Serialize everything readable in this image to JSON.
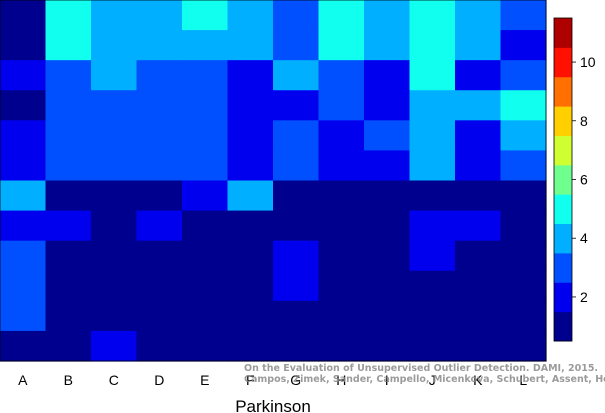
{
  "chart_data": {
    "type": "heatmap",
    "xlabel": "Parkinson",
    "x_categories": [
      "A",
      "B",
      "C",
      "D",
      "E",
      "F",
      "G",
      "H",
      "I",
      "J",
      "K",
      "L"
    ],
    "row_count": 12,
    "values": [
      [
        1,
        5,
        4,
        4,
        5,
        4,
        3,
        5,
        4,
        5,
        4,
        3
      ],
      [
        1,
        5,
        4,
        4,
        4,
        4,
        3,
        5,
        4,
        5,
        4,
        2
      ],
      [
        2,
        3,
        4,
        3,
        3,
        2,
        4,
        3,
        2,
        5,
        2,
        3
      ],
      [
        1,
        3,
        3,
        3,
        3,
        2,
        2,
        3,
        2,
        4,
        4,
        5
      ],
      [
        2,
        3,
        3,
        3,
        3,
        2,
        3,
        2,
        3,
        4,
        2,
        4
      ],
      [
        2,
        3,
        3,
        3,
        3,
        2,
        3,
        2,
        2,
        4,
        2,
        3
      ],
      [
        4,
        1,
        1,
        1,
        2,
        4,
        1,
        1,
        1,
        1,
        1,
        1
      ],
      [
        2,
        2,
        1,
        2,
        1,
        1,
        1,
        1,
        1,
        2,
        2,
        1
      ],
      [
        3,
        1,
        1,
        1,
        1,
        1,
        2,
        1,
        1,
        2,
        1,
        1
      ],
      [
        3,
        1,
        1,
        1,
        1,
        1,
        2,
        1,
        1,
        1,
        1,
        1
      ],
      [
        3,
        1,
        1,
        1,
        1,
        1,
        1,
        1,
        1,
        1,
        1,
        1
      ],
      [
        1,
        1,
        2,
        1,
        1,
        1,
        1,
        1,
        1,
        1,
        1,
        1
      ]
    ],
    "value_range": [
      1,
      11
    ],
    "colorbar": {
      "ticks": [
        2,
        4,
        6,
        8,
        10
      ],
      "colors": [
        "#00008f",
        "#0000ef",
        "#0050ff",
        "#00afff",
        "#10ffef",
        "#6fff8f",
        "#cfff30",
        "#ffcf00",
        "#ff7000",
        "#ff1000",
        "#af0000"
      ]
    },
    "grid": false,
    "legend": "colorbar-right"
  },
  "annotation": {
    "line1": "On the Evaluation of Unsupervised Outlier Detection. DAMI, 2015.",
    "line2": "Campos, Zimek, Sander, Campello, Micenkova, Schubert, Assent, Houle"
  }
}
